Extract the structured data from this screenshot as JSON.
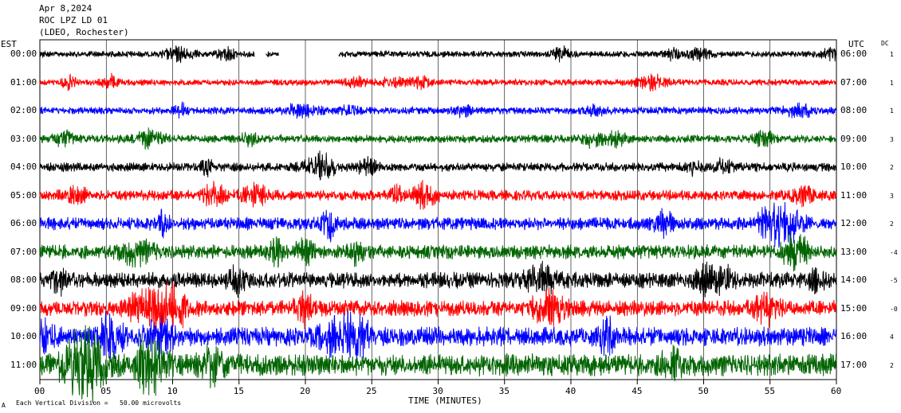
{
  "header": {
    "date": "Apr 8,2024",
    "station": "ROC LPZ LD 01",
    "network": "(LDEO, Rochester)"
  },
  "left_axis_label": "EST",
  "right_axis_label": "UTC",
  "dc_label": "DC",
  "footer": {
    "scale_note": "Each Vertical Division =   50.00 microvolts",
    "corner_mark": "A"
  },
  "colors": [
    "#000000",
    "#ff0000",
    "#0000ff",
    "#006400"
  ],
  "chart_data": {
    "type": "line",
    "xlabel": "TIME (MINUTES)",
    "xlim": [
      0,
      60
    ],
    "x_ticks": [
      "00",
      "05",
      "10",
      "15",
      "20",
      "25",
      "30",
      "35",
      "40",
      "45",
      "50",
      "55",
      "60"
    ],
    "rows": [
      {
        "est": "00:00",
        "utc": "06:00",
        "dc": "1",
        "color": "#000000",
        "amplitude": 0.12,
        "gaps": [
          [
            16.2,
            17.0
          ],
          [
            18.0,
            22.5
          ]
        ]
      },
      {
        "est": "01:00",
        "utc": "07:00",
        "dc": "1",
        "color": "#ff0000",
        "amplitude": 0.12,
        "gaps": []
      },
      {
        "est": "02:00",
        "utc": "08:00",
        "dc": "1",
        "color": "#0000ff",
        "amplitude": 0.14,
        "gaps": []
      },
      {
        "est": "03:00",
        "utc": "09:00",
        "dc": "3",
        "color": "#006400",
        "amplitude": 0.15,
        "gaps": []
      },
      {
        "est": "04:00",
        "utc": "10:00",
        "dc": "2",
        "color": "#000000",
        "amplitude": 0.17,
        "gaps": []
      },
      {
        "est": "05:00",
        "utc": "11:00",
        "dc": "3",
        "color": "#ff0000",
        "amplitude": 0.2,
        "gaps": []
      },
      {
        "est": "06:00",
        "utc": "12:00",
        "dc": "2",
        "color": "#0000ff",
        "amplitude": 0.24,
        "gaps": []
      },
      {
        "est": "07:00",
        "utc": "13:00",
        "dc": "-4",
        "color": "#006400",
        "amplitude": 0.27,
        "gaps": []
      },
      {
        "est": "08:00",
        "utc": "14:00",
        "dc": "-5",
        "color": "#000000",
        "amplitude": 0.3,
        "gaps": []
      },
      {
        "est": "09:00",
        "utc": "15:00",
        "dc": "-0",
        "color": "#ff0000",
        "amplitude": 0.3,
        "gaps": []
      },
      {
        "est": "10:00",
        "utc": "16:00",
        "dc": "4",
        "color": "#0000ff",
        "amplitude": 0.36,
        "gaps": []
      },
      {
        "est": "11:00",
        "utc": "17:00",
        "dc": "2",
        "color": "#006400",
        "amplitude": 0.42,
        "gaps": []
      }
    ]
  }
}
